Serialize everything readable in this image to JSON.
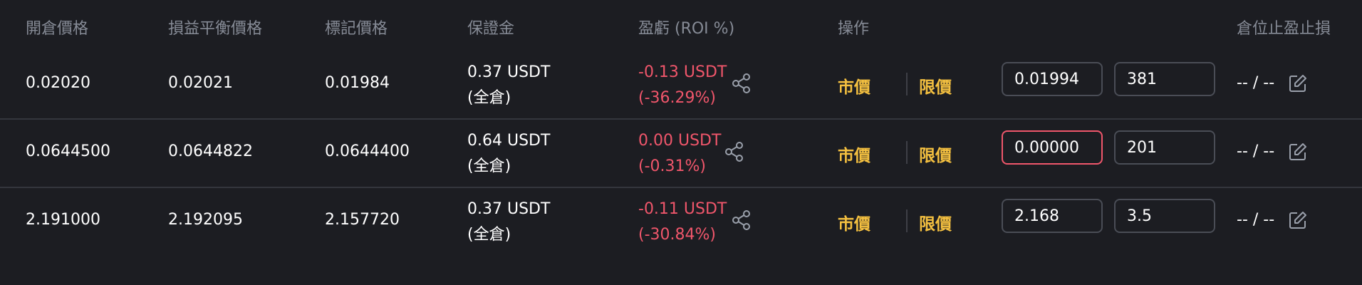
{
  "header": {
    "entry_price": "開倉價格",
    "breakeven_price": "損益平衡價格",
    "mark_price": "標記價格",
    "margin": "保證金",
    "pnl": "盈虧 (ROI %)",
    "action": "操作",
    "tpsl": "倉位止盈止損"
  },
  "rows": [
    {
      "entry_price": "0.02020",
      "breakeven_price": "0.02021",
      "mark_price": "0.01984",
      "margin": "0.37 USDT",
      "margin_mode": "(全倉)",
      "pnl": "-0.13 USDT",
      "roi": "(-36.29%)",
      "market_label": "市價",
      "limit_label": "限價",
      "price_input": "0.01994",
      "qty_input": "381",
      "tpsl": "-- / --"
    },
    {
      "entry_price": "0.0644500",
      "breakeven_price": "0.0644822",
      "mark_price": "0.0644400",
      "margin": "0.64 USDT",
      "margin_mode": "(全倉)",
      "pnl": "0.00 USDT",
      "roi": "(-0.31%)",
      "market_label": "市價",
      "limit_label": "限價",
      "price_input": "0.00000",
      "qty_input": "201",
      "tpsl": "-- / --"
    },
    {
      "entry_price": "2.191000",
      "breakeven_price": "2.192095",
      "mark_price": "2.157720",
      "margin": "0.37 USDT",
      "margin_mode": "(全倉)",
      "pnl": "-0.11 USDT",
      "roi": "(-30.84%)",
      "market_label": "市價",
      "limit_label": "限價",
      "price_input": "2.168",
      "qty_input": "3.5",
      "tpsl": "-- / --"
    }
  ],
  "colors": {
    "background": "#1c1d22",
    "header_text": "#868b96",
    "loss": "#f0566b",
    "action": "#f4c040",
    "input_border": "#4a4d56",
    "input_error_border": "#f0566b"
  },
  "icons": {
    "share": "share-icon",
    "edit": "edit-icon"
  }
}
